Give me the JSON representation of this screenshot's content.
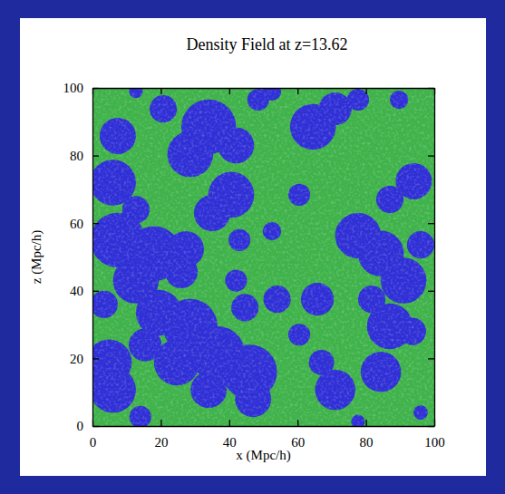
{
  "chart_data": {
    "type": "bubble",
    "title": "Density Field at z=13.62",
    "x_label": "x (Mpc/h)",
    "y_label": "z (Mpc/h)",
    "color": "#2f2fd6",
    "xlim": [
      0,
      100
    ],
    "ylim": [
      0,
      100
    ],
    "xticks": [
      0,
      20,
      40,
      60,
      80,
      100
    ],
    "yticks": [
      0,
      20,
      40,
      60,
      80,
      100
    ],
    "x": [
      7.4,
      6,
      12.7,
      12.7,
      20.7,
      34,
      28.6,
      42,
      40.6,
      35,
      48.5,
      52.5,
      7.4,
      18,
      12.7,
      27.3,
      26,
      43,
      52.5,
      60.5,
      64.5,
      71,
      77.7,
      89.7,
      94,
      87,
      77.7,
      84.4,
      91,
      96,
      81.7,
      4.8,
      6,
      3.4,
      19.4,
      28.6,
      36.6,
      24.7,
      15.4,
      34,
      46,
      47,
      44.6,
      54,
      60.5,
      65.8,
      42,
      71,
      67,
      84.4,
      87,
      93.6,
      96,
      77.7,
      14
    ],
    "values": [
      85.8,
      72,
      64,
      99,
      93.8,
      88.5,
      80.4,
      83,
      68.4,
      63,
      96.5,
      99,
      55,
      51,
      43,
      52.3,
      45.6,
      55,
      57.6,
      68.4,
      88.5,
      93.8,
      96.5,
      96.5,
      72.4,
      67,
      56.3,
      51,
      43,
      53.6,
      37.5,
      18.8,
      10.7,
      36,
      33.5,
      29.5,
      21.4,
      18.8,
      24,
      10.7,
      16,
      8,
      35,
      37.5,
      27,
      37.5,
      43,
      10.7,
      18.8,
      16,
      29.5,
      28,
      4,
      1.3,
      2.7
    ],
    "radius": [
      5.3,
      6.7,
      4,
      2,
      4,
      8,
      6.7,
      5.3,
      6.7,
      5.3,
      3.2,
      2.7,
      8,
      8,
      6.7,
      5.3,
      4.8,
      3.2,
      2.7,
      3.2,
      6.7,
      4.8,
      3.2,
      2.7,
      5.3,
      4,
      6.7,
      6.7,
      6.7,
      4,
      4,
      6.7,
      6.7,
      4,
      6.7,
      8,
      8,
      6.7,
      4.8,
      5.3,
      8,
      5.3,
      4,
      4,
      3.2,
      4.8,
      3.2,
      5.9,
      3.7,
      5.9,
      6.7,
      4,
      2.1,
      2,
      3.2
    ]
  }
}
